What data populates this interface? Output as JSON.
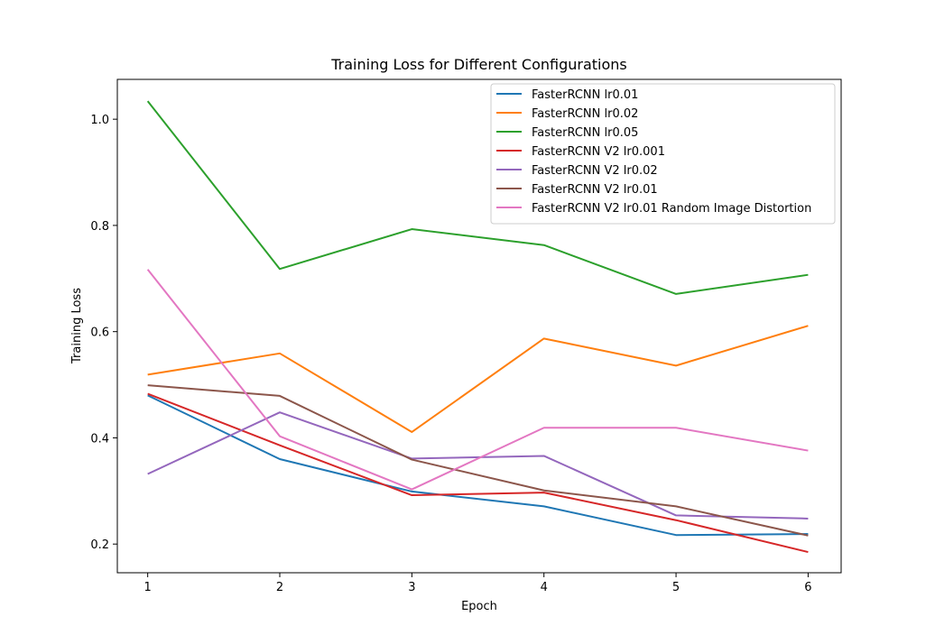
{
  "chart_data": {
    "type": "line",
    "title": "Training Loss for Different Configurations",
    "xlabel": "Epoch",
    "ylabel": "Training Loss",
    "x": [
      1,
      2,
      3,
      4,
      5,
      6
    ],
    "xlim": [
      0.77,
      6.25
    ],
    "ylim": [
      0.146,
      1.075
    ],
    "xticks": [
      1,
      2,
      3,
      4,
      5,
      6
    ],
    "yticks": [
      0.2,
      0.4,
      0.6,
      0.8,
      1.0
    ],
    "ytick_labels": [
      "0.2",
      "0.4",
      "0.6",
      "0.8",
      "1.0"
    ],
    "grid": false,
    "legend_position": "upper right",
    "series": [
      {
        "name": "FasterRCNN lr0.01",
        "color": "#1f77b4",
        "values": [
          0.48,
          0.36,
          0.299,
          0.271,
          0.217,
          0.219
        ]
      },
      {
        "name": "FasterRCNN lr0.02",
        "color": "#ff7f0e",
        "values": [
          0.519,
          0.559,
          0.411,
          0.587,
          0.536,
          0.611
        ]
      },
      {
        "name": "FasterRCNN lr0.05",
        "color": "#2ca02c",
        "values": [
          1.034,
          0.718,
          0.793,
          0.763,
          0.671,
          0.707
        ]
      },
      {
        "name": "FasterRCNN V2 lr0.001",
        "color": "#d62728",
        "values": [
          0.483,
          0.386,
          0.292,
          0.297,
          0.245,
          0.185
        ]
      },
      {
        "name": "FasterRCNN V2 lr0.02",
        "color": "#9467bd",
        "values": [
          0.332,
          0.448,
          0.361,
          0.366,
          0.254,
          0.248
        ]
      },
      {
        "name": "FasterRCNN V2 lr0.01",
        "color": "#8c564b",
        "values": [
          0.499,
          0.479,
          0.359,
          0.301,
          0.271,
          0.216
        ]
      },
      {
        "name": "FasterRCNN V2 lr0.01 Random Image Distortion",
        "color": "#e377c2",
        "values": [
          0.717,
          0.403,
          0.303,
          0.419,
          0.419,
          0.376
        ]
      }
    ]
  }
}
